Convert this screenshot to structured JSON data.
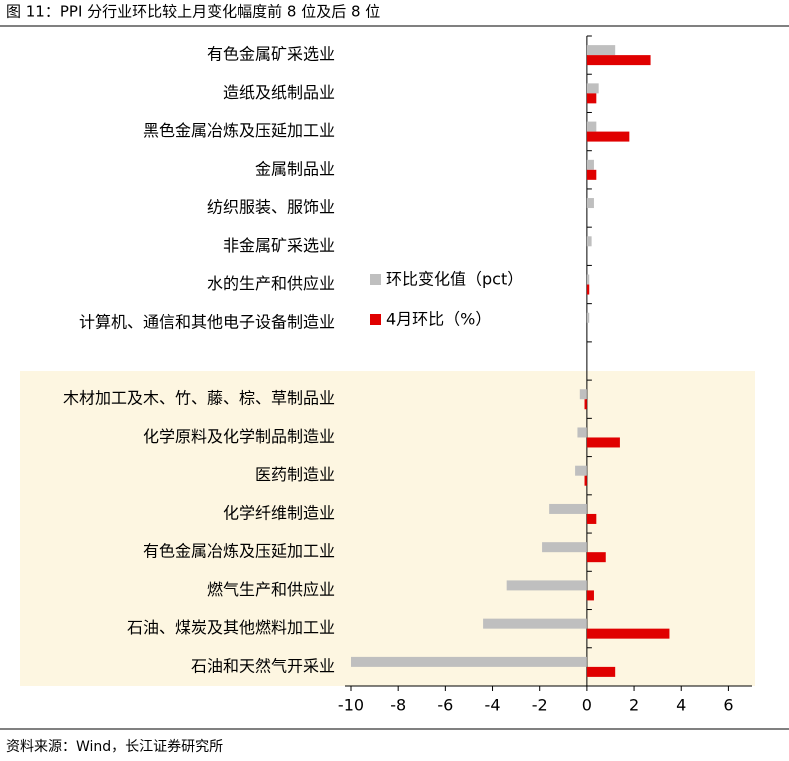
{
  "header": {
    "title": "图 11：PPI 分行业环比较上月变化幅度前 8 位及后 8 位"
  },
  "chart_data": {
    "type": "bar",
    "orientation": "horizontal",
    "categories": [
      "有色金属矿采选业",
      "造纸及纸制品业",
      "黑色金属冶炼及压延加工业",
      "金属制品业",
      "纺织服装、服饰业",
      "非金属矿采选业",
      "水的生产和供应业",
      "计算机、通信和其他电子设备制造业",
      null,
      "木材加工及木、竹、藤、棕、草制品业",
      "化学原料及化学制品制造业",
      "医药制造业",
      "化学纤维制造业",
      "有色金属冶炼及压延加工业",
      "燃气生产和供应业",
      "石油、煤炭及其他燃料加工业",
      "石油和天然气开采业"
    ],
    "series": [
      {
        "name": "环比变化值（pct）",
        "color": "#bfbfbf",
        "values": [
          1.2,
          0.5,
          0.4,
          0.3,
          0.3,
          0.2,
          0.1,
          0.1,
          null,
          -0.3,
          -0.4,
          -0.5,
          -1.6,
          -1.9,
          -3.4,
          -4.4,
          -10
        ]
      },
      {
        "name": "4月环比（%）",
        "color": "#e00000",
        "values": [
          2.7,
          0.4,
          1.8,
          0.4,
          0,
          0,
          0.1,
          0,
          null,
          -0.1,
          1.4,
          -0.1,
          0.4,
          0.8,
          0.3,
          3.5,
          1.2
        ]
      }
    ],
    "xlim": [
      -10,
      7
    ],
    "xticks": [
      -10,
      -8,
      -6,
      -4,
      -2,
      0,
      2,
      4,
      6
    ]
  },
  "footer": {
    "source": "资料来源：Wind，长江证券研究所"
  }
}
